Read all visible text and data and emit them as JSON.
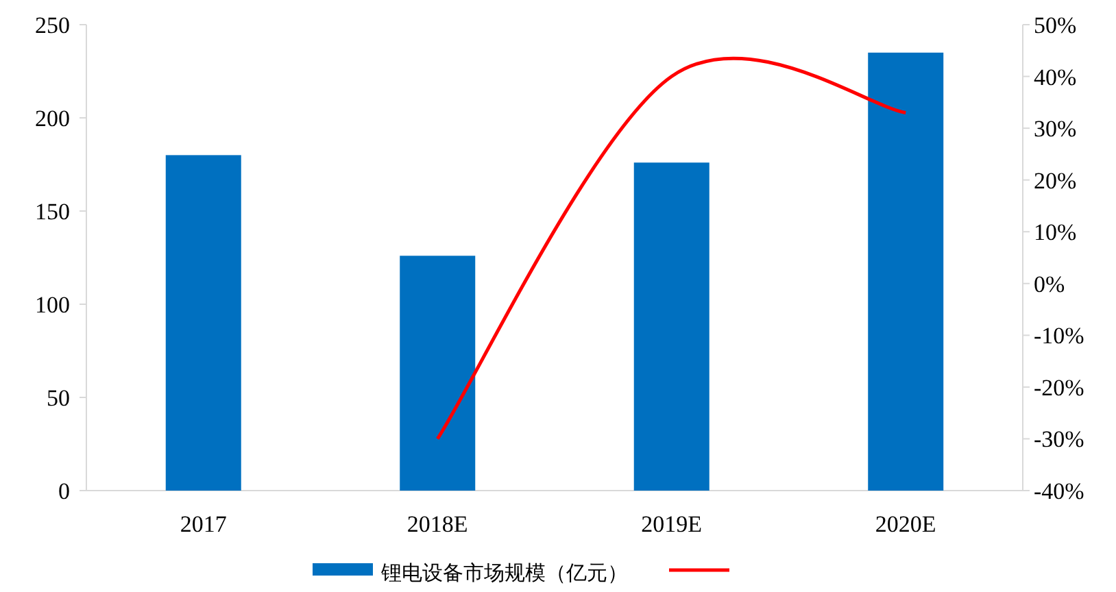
{
  "chart_data": {
    "type": "bar",
    "categories": [
      "2017",
      "2018E",
      "2019E",
      "2020E"
    ],
    "series": [
      {
        "name": "锂电设备市场规模（亿元）",
        "color": "#0070c0",
        "values": [
          180,
          126,
          176,
          235
        ]
      },
      {
        "type": "line",
        "axis": "y2",
        "color": "#ff0000",
        "values": [
          null,
          -30,
          40,
          33
        ],
        "marker": "none",
        "line_style": "solid"
      }
    ],
    "ylim": [
      0,
      250
    ],
    "yticks": [
      0,
      50,
      100,
      150,
      200,
      250
    ],
    "y2lim": [
      -40,
      50
    ],
    "y2ticks": [
      {
        "value": -40,
        "label": "-40%"
      },
      {
        "value": -30,
        "label": "-30%"
      },
      {
        "value": -20,
        "label": "-20%"
      },
      {
        "value": -10,
        "label": "-10%"
      },
      {
        "value": 0,
        "label": "0%"
      },
      {
        "value": 10,
        "label": "10%"
      },
      {
        "value": 20,
        "label": "20%"
      },
      {
        "value": 30,
        "label": "30%"
      },
      {
        "value": 40,
        "label": "40%"
      },
      {
        "value": 50,
        "label": "50%"
      }
    ],
    "grid": false,
    "legend": "bottom"
  }
}
